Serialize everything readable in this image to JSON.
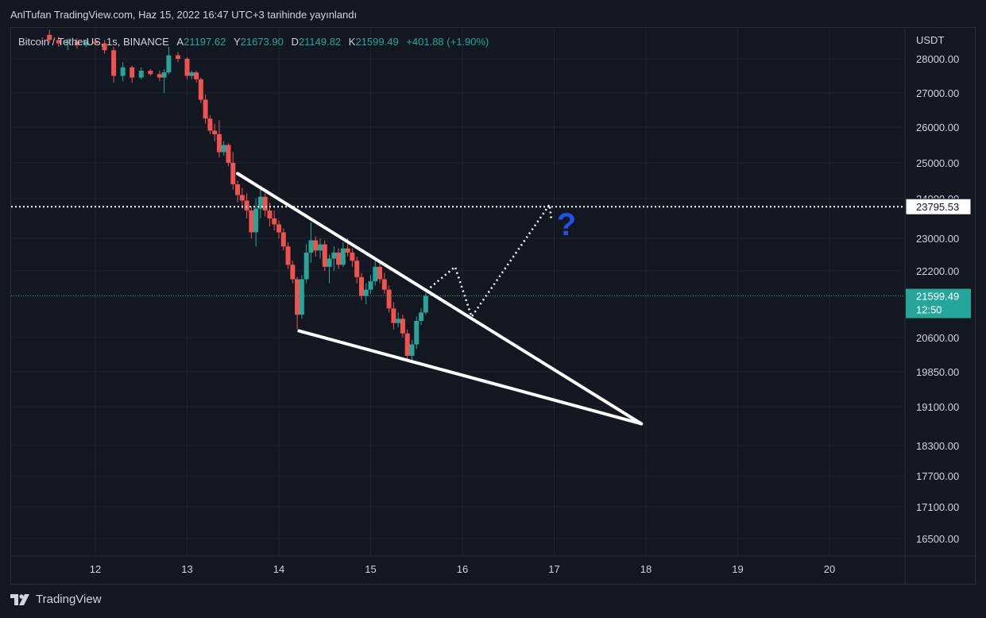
{
  "header": {
    "title": "AnlTufan TradingView.com, Haz 15, 2022 16:47 UTC+3 tarihinde yayınlandı"
  },
  "legend": {
    "symbol": "Bitcoin / TetherUS, 1s, BINANCE",
    "open_label": "A",
    "open": "21197.62",
    "high_label": "Y",
    "high": "21673.90",
    "low_label": "D",
    "low": "21149.82",
    "close_label": "K",
    "close": "21599.49",
    "change": "+401.88 (+1.90%)"
  },
  "price_axis": {
    "unit": "USDT",
    "ticks": [
      "28000.00",
      "27000.00",
      "26000.00",
      "25000.00",
      "24000.00",
      "23000.00",
      "22200.00",
      "20600.00",
      "19850.00",
      "19100.00",
      "18300.00",
      "17700.00",
      "17100.00",
      "16500.00"
    ]
  },
  "time_axis": {
    "ticks": [
      "12",
      "13",
      "14",
      "15",
      "16",
      "17",
      "18",
      "19",
      "20"
    ]
  },
  "markers": {
    "horizontal_level": "23795.53",
    "current_price": "21599.49",
    "countdown": "12:50",
    "question": "?"
  },
  "footer": {
    "brand": "TradingView"
  },
  "colors": {
    "background": "#131722",
    "up": "#26a69a",
    "down": "#ef5350",
    "question": "#1e53e5",
    "grid": "#1f2330"
  },
  "chart_data": {
    "type": "candlestick",
    "title": "Bitcoin / TetherUS, 1s, BINANCE",
    "x_unit": "day of June 2022",
    "y_unit": "USDT",
    "ylim": [
      16300,
      28600
    ],
    "xlim": [
      11.0,
      21.0
    ],
    "grid": true,
    "candles": [
      {
        "x": 11.5,
        "o": 28700,
        "h": 28850,
        "l": 28450,
        "c": 28550
      },
      {
        "x": 11.6,
        "o": 28550,
        "h": 28650,
        "l": 28350,
        "c": 28450
      },
      {
        "x": 11.7,
        "o": 28450,
        "h": 28600,
        "l": 28250,
        "c": 28500
      },
      {
        "x": 11.8,
        "o": 28500,
        "h": 28600,
        "l": 28300,
        "c": 28400
      },
      {
        "x": 11.9,
        "o": 28400,
        "h": 28550,
        "l": 28350,
        "c": 28500
      },
      {
        "x": 12.0,
        "o": 28500,
        "h": 28600,
        "l": 28400,
        "c": 28450
      },
      {
        "x": 12.1,
        "o": 28450,
        "h": 28550,
        "l": 28150,
        "c": 28250
      },
      {
        "x": 12.2,
        "o": 28250,
        "h": 28350,
        "l": 27300,
        "c": 27500
      },
      {
        "x": 12.3,
        "o": 27500,
        "h": 27900,
        "l": 27350,
        "c": 27750
      },
      {
        "x": 12.4,
        "o": 27750,
        "h": 27800,
        "l": 27300,
        "c": 27450
      },
      {
        "x": 12.5,
        "o": 27450,
        "h": 27750,
        "l": 27400,
        "c": 27650
      },
      {
        "x": 12.6,
        "o": 27650,
        "h": 27700,
        "l": 27500,
        "c": 27550
      },
      {
        "x": 12.7,
        "o": 27550,
        "h": 27650,
        "l": 27350,
        "c": 27450
      },
      {
        "x": 12.75,
        "o": 27450,
        "h": 27700,
        "l": 27000,
        "c": 27600
      },
      {
        "x": 12.8,
        "o": 27600,
        "h": 28350,
        "l": 27550,
        "c": 28100
      },
      {
        "x": 12.9,
        "o": 28100,
        "h": 28200,
        "l": 27900,
        "c": 28000
      },
      {
        "x": 13.0,
        "o": 28000,
        "h": 28050,
        "l": 27400,
        "c": 27500
      },
      {
        "x": 13.05,
        "o": 27500,
        "h": 27650,
        "l": 27400,
        "c": 27600
      },
      {
        "x": 13.1,
        "o": 27600,
        "h": 27650,
        "l": 27300,
        "c": 27400
      },
      {
        "x": 13.15,
        "o": 27400,
        "h": 27450,
        "l": 26700,
        "c": 26800
      },
      {
        "x": 13.2,
        "o": 26800,
        "h": 26950,
        "l": 26100,
        "c": 26250
      },
      {
        "x": 13.25,
        "o": 26250,
        "h": 26350,
        "l": 25800,
        "c": 25900
      },
      {
        "x": 13.3,
        "o": 25900,
        "h": 26100,
        "l": 25600,
        "c": 25800
      },
      {
        "x": 13.35,
        "o": 25800,
        "h": 26200,
        "l": 25150,
        "c": 25300
      },
      {
        "x": 13.4,
        "o": 25300,
        "h": 25600,
        "l": 25200,
        "c": 25500
      },
      {
        "x": 13.45,
        "o": 25500,
        "h": 25550,
        "l": 24900,
        "c": 25000
      },
      {
        "x": 13.5,
        "o": 25000,
        "h": 25300,
        "l": 24250,
        "c": 24400
      },
      {
        "x": 13.55,
        "o": 24400,
        "h": 24500,
        "l": 23900,
        "c": 24100
      },
      {
        "x": 13.6,
        "o": 24100,
        "h": 24300,
        "l": 23750,
        "c": 23950
      },
      {
        "x": 13.65,
        "o": 23950,
        "h": 24150,
        "l": 23500,
        "c": 23700
      },
      {
        "x": 13.7,
        "o": 23700,
        "h": 23800,
        "l": 23000,
        "c": 23150
      },
      {
        "x": 13.75,
        "o": 23150,
        "h": 24000,
        "l": 22800,
        "c": 23750
      },
      {
        "x": 13.8,
        "o": 23750,
        "h": 24300,
        "l": 23500,
        "c": 24050
      },
      {
        "x": 13.85,
        "o": 24050,
        "h": 24150,
        "l": 23550,
        "c": 23700
      },
      {
        "x": 13.9,
        "o": 23700,
        "h": 23900,
        "l": 23300,
        "c": 23500
      },
      {
        "x": 13.95,
        "o": 23500,
        "h": 23700,
        "l": 23200,
        "c": 23350
      },
      {
        "x": 14.0,
        "o": 23350,
        "h": 23450,
        "l": 23000,
        "c": 23150
      },
      {
        "x": 14.05,
        "o": 23150,
        "h": 23250,
        "l": 22700,
        "c": 22800
      },
      {
        "x": 14.1,
        "o": 22800,
        "h": 22900,
        "l": 22250,
        "c": 22350
      },
      {
        "x": 14.15,
        "o": 22350,
        "h": 22450,
        "l": 21900,
        "c": 22000
      },
      {
        "x": 14.2,
        "o": 22000,
        "h": 22050,
        "l": 20800,
        "c": 21150
      },
      {
        "x": 14.25,
        "o": 21150,
        "h": 22100,
        "l": 21050,
        "c": 22000
      },
      {
        "x": 14.3,
        "o": 22000,
        "h": 22850,
        "l": 21900,
        "c": 22650
      },
      {
        "x": 14.35,
        "o": 22650,
        "h": 23400,
        "l": 22400,
        "c": 22950
      },
      {
        "x": 14.4,
        "o": 22950,
        "h": 23050,
        "l": 22550,
        "c": 22700
      },
      {
        "x": 14.45,
        "o": 22700,
        "h": 23000,
        "l": 22500,
        "c": 22850
      },
      {
        "x": 14.5,
        "o": 22850,
        "h": 22950,
        "l": 22200,
        "c": 22300
      },
      {
        "x": 14.55,
        "o": 22300,
        "h": 22600,
        "l": 21900,
        "c": 22500
      },
      {
        "x": 14.6,
        "o": 22500,
        "h": 22800,
        "l": 22200,
        "c": 22650
      },
      {
        "x": 14.65,
        "o": 22650,
        "h": 22750,
        "l": 22250,
        "c": 22350
      },
      {
        "x": 14.7,
        "o": 22350,
        "h": 22900,
        "l": 22300,
        "c": 22750
      },
      {
        "x": 14.75,
        "o": 22750,
        "h": 23000,
        "l": 22550,
        "c": 22650
      },
      {
        "x": 14.8,
        "o": 22650,
        "h": 22750,
        "l": 22300,
        "c": 22450
      },
      {
        "x": 14.85,
        "o": 22450,
        "h": 22550,
        "l": 21900,
        "c": 22050
      },
      {
        "x": 14.9,
        "o": 22050,
        "h": 22150,
        "l": 21500,
        "c": 21600
      },
      {
        "x": 14.95,
        "o": 21600,
        "h": 21900,
        "l": 21400,
        "c": 21750
      },
      {
        "x": 15.0,
        "o": 21750,
        "h": 22100,
        "l": 21650,
        "c": 21950
      },
      {
        "x": 15.05,
        "o": 21950,
        "h": 22450,
        "l": 21850,
        "c": 22300
      },
      {
        "x": 15.1,
        "o": 22300,
        "h": 22450,
        "l": 21900,
        "c": 22000
      },
      {
        "x": 15.15,
        "o": 22000,
        "h": 22150,
        "l": 21650,
        "c": 21750
      },
      {
        "x": 15.2,
        "o": 21750,
        "h": 21850,
        "l": 21200,
        "c": 21300
      },
      {
        "x": 15.25,
        "o": 21300,
        "h": 21450,
        "l": 20800,
        "c": 20950
      },
      {
        "x": 15.3,
        "o": 20950,
        "h": 21200,
        "l": 20850,
        "c": 21050
      },
      {
        "x": 15.35,
        "o": 21050,
        "h": 21150,
        "l": 20600,
        "c": 20700
      },
      {
        "x": 15.4,
        "o": 20700,
        "h": 20800,
        "l": 20100,
        "c": 20200
      },
      {
        "x": 15.45,
        "o": 20200,
        "h": 20550,
        "l": 20100,
        "c": 20450
      },
      {
        "x": 15.5,
        "o": 20450,
        "h": 21100,
        "l": 20350,
        "c": 21000
      },
      {
        "x": 15.55,
        "o": 21000,
        "h": 21300,
        "l": 20900,
        "c": 21200
      },
      {
        "x": 15.6,
        "o": 21200,
        "h": 21673.9,
        "l": 21149.82,
        "c": 21599.49
      }
    ],
    "trendlines": [
      {
        "name": "upper",
        "from": {
          "x": 13.55,
          "y": 24700
        },
        "to": {
          "x": 17.95,
          "y": 18750
        }
      },
      {
        "name": "lower",
        "from": {
          "x": 14.22,
          "y": 20760
        },
        "to": {
          "x": 17.95,
          "y": 18750
        }
      }
    ],
    "projection": [
      {
        "x": 15.65,
        "y": 21800
      },
      {
        "x": 15.92,
        "y": 22300
      },
      {
        "x": 16.1,
        "y": 21100
      },
      {
        "x": 16.95,
        "y": 23850
      },
      {
        "x": 16.97,
        "y": 23450
      }
    ],
    "level": 23795.53,
    "current": 21599.49
  }
}
